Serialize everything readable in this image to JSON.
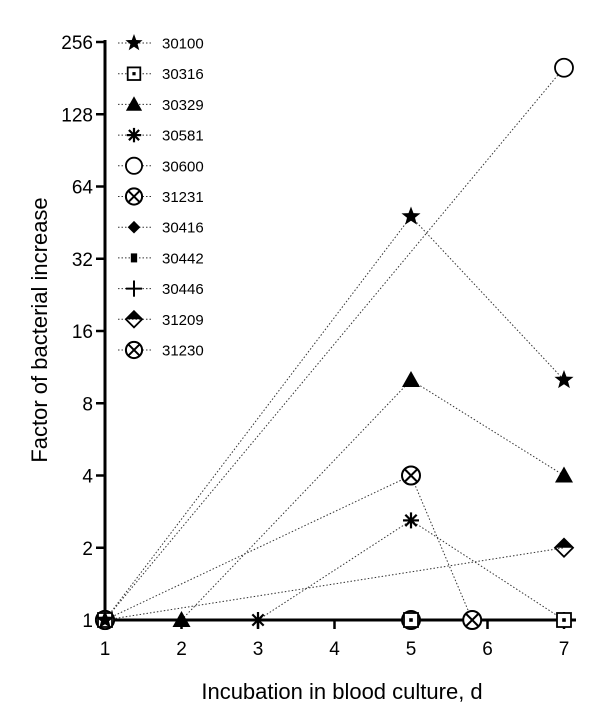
{
  "chart_data": {
    "type": "line",
    "xlabel": "Incubation in blood culture, d",
    "ylabel": "Factor of bacterial increase",
    "y_scale": "log2",
    "xlim": [
      1,
      7
    ],
    "ylim": [
      1,
      256
    ],
    "x_ticks": [
      1,
      2,
      3,
      4,
      5,
      6,
      7
    ],
    "y_ticks": [
      1,
      2,
      4,
      8,
      16,
      32,
      64,
      128,
      256
    ],
    "line_style": "dotted",
    "legend_placement": "top-left",
    "series": [
      {
        "name": "30100",
        "marker": "star-filled",
        "points": [
          [
            1,
            1
          ],
          [
            5,
            48
          ],
          [
            7,
            10
          ]
        ]
      },
      {
        "name": "30316",
        "marker": "square-dot",
        "points": [
          [
            1,
            1
          ],
          [
            5,
            1
          ],
          [
            7,
            1
          ]
        ]
      },
      {
        "name": "30329",
        "marker": "triangle-filled",
        "points": [
          [
            2,
            1
          ],
          [
            5,
            10
          ],
          [
            7,
            4
          ]
        ]
      },
      {
        "name": "30581",
        "marker": "asterisk",
        "points": [
          [
            3,
            1
          ],
          [
            5,
            2.6
          ],
          [
            7,
            1
          ]
        ]
      },
      {
        "name": "30600",
        "marker": "circle-open",
        "points": [
          [
            1,
            1
          ],
          [
            7,
            200
          ]
        ]
      },
      {
        "name": "31231",
        "marker": "circle-x",
        "points": [
          [
            1,
            1
          ],
          [
            5,
            4
          ],
          [
            5.8,
            1
          ]
        ]
      },
      {
        "name": "30416",
        "marker": "diamond-filled",
        "points": [
          [
            1,
            1
          ]
        ]
      },
      {
        "name": "30442",
        "marker": "square-small-filled",
        "points": [
          [
            1,
            1
          ]
        ]
      },
      {
        "name": "30446",
        "marker": "plus",
        "points": [
          [
            1,
            1
          ]
        ]
      },
      {
        "name": "31209",
        "marker": "diamond-half",
        "points": [
          [
            1,
            1
          ],
          [
            7,
            2
          ]
        ]
      },
      {
        "name": "31230",
        "marker": "circle-x",
        "points": [
          [
            1,
            1
          ],
          [
            5,
            1
          ]
        ]
      }
    ]
  }
}
